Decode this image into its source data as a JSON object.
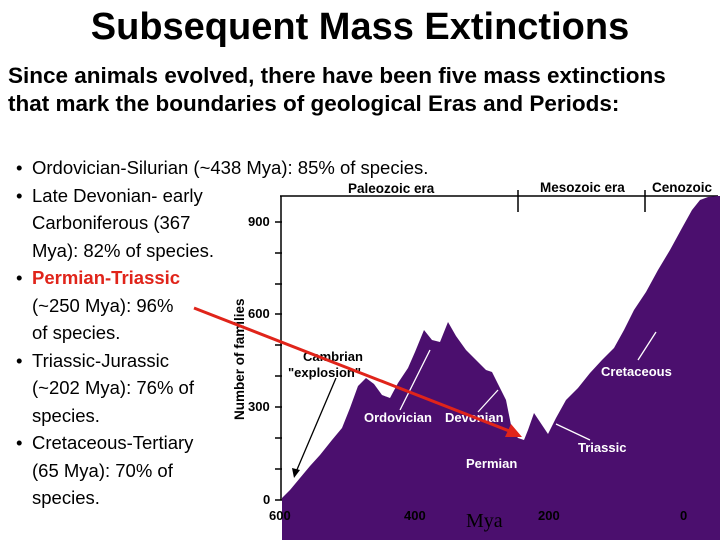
{
  "title": "Subsequent Mass Extinctions",
  "intro": "Since animals evolved, there have been five mass extinctions that mark the boundaries of geological Eras and Periods:",
  "bullets": [
    {
      "lines": [
        "Ordovician-Silurian (~438 Mya): 85% of species."
      ]
    },
    {
      "lines": [
        "Late Devonian- early",
        "Carboniferous (367",
        "Mya): 82% of species."
      ]
    },
    {
      "lines": [
        "Permian-Triassic",
        "(~250 Mya): 96%",
        "of species."
      ],
      "highlight": "Permian-Triassic"
    },
    {
      "lines": [
        "Triassic-Jurassic",
        "(~202 Mya): 76% of",
        "species."
      ]
    },
    {
      "lines": [
        "Cretaceous-Tertiary",
        "(65 Mya): 70% of",
        "species."
      ]
    }
  ],
  "chart": {
    "eras": [
      "Paleozoic era",
      "Mesozoic era",
      "Cenozoic"
    ],
    "y_axis_label": "Number of families",
    "y_ticks": [
      "900",
      "600",
      "300",
      "0"
    ],
    "x_ticks": [
      "600",
      "400",
      "200",
      "0"
    ],
    "x_axis_label": "Mya",
    "annotations": {
      "cambrian": [
        "Cambrian",
        "\"explosion\""
      ],
      "ordovician": "Ordovician",
      "devonian": "Devonian",
      "permian": "Permian",
      "triassic": "Triassic",
      "cretaceous": "Cretaceous"
    },
    "colors": {
      "fill": "#4b0f6e",
      "axis": "#000000",
      "arrow": "#e0241a",
      "label": "#ffffff",
      "header_bg": "#ffffff"
    }
  }
}
